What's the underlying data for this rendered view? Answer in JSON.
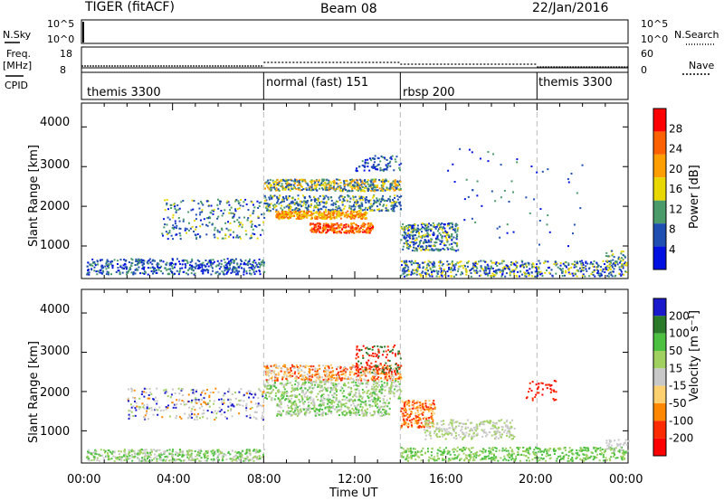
{
  "header": {
    "radar": "TIGER (fitACF)",
    "beam": "Beam 08",
    "date": "22/Jan/2016"
  },
  "strips": {
    "nsky_label": "N.Sky",
    "nsearch_label": "N.Search",
    "freq_label": "Freq.",
    "freq_unit": "[MHz]",
    "nave_label": "Nave",
    "cpid_label": "CPID",
    "left_ticks_top": [
      "10^5",
      "10^0"
    ],
    "right_ticks_top": [
      "10^5",
      "10^0"
    ],
    "freq_ticks": [
      "18",
      "8"
    ],
    "nave_ticks": [
      "60",
      "0"
    ]
  },
  "chart_data": [
    {
      "type": "table",
      "title": "CPID",
      "segments": [
        {
          "start": "00:00",
          "end": "08:00",
          "label": "themis 3300"
        },
        {
          "start": "08:00",
          "end": "14:00",
          "label": "normal (fast) 151"
        },
        {
          "start": "14:00",
          "end": "20:00",
          "label": "rbsp 200"
        },
        {
          "start": "20:00",
          "end": "24:00",
          "label": "themis 3300"
        }
      ]
    },
    {
      "type": "heatmap",
      "ylabel": "Slant Range [km]",
      "yticks": [
        "4000",
        "3000",
        "2000",
        "1000"
      ],
      "ylim": [
        180,
        4600
      ],
      "colorbar_label": "Power [dB]",
      "colorbar_ticks": [
        "28",
        "24",
        "20",
        "16",
        "12",
        "8",
        "4"
      ],
      "colorbar_colors": [
        "#ff0000",
        "#ff6000",
        "#ff9e00",
        "#e8d800",
        "#4a9a6a",
        "#1e4eb0",
        "#0010e0"
      ]
    },
    {
      "type": "heatmap",
      "ylabel": "Slant Range [km]",
      "yticks": [
        "4000",
        "3000",
        "2000",
        "1000"
      ],
      "ylim": [
        180,
        4600
      ],
      "xlabel": "Time UT",
      "xticks": [
        "00:00",
        "04:00",
        "08:00",
        "12:00",
        "16:00",
        "20:00",
        "00:00"
      ],
      "colorbar_label": "Velocity [m s⁻¹]",
      "colorbar_ticks": [
        "200",
        "100",
        "50",
        "15",
        "-15",
        "-50",
        "-100",
        "-200"
      ],
      "colorbar_colors": [
        "#1a1acc",
        "#2a7a2a",
        "#4cc040",
        "#a0d060",
        "#c8c8c8",
        "#ffd070",
        "#ff8800",
        "#ff2a00",
        "#ff0000"
      ]
    }
  ]
}
